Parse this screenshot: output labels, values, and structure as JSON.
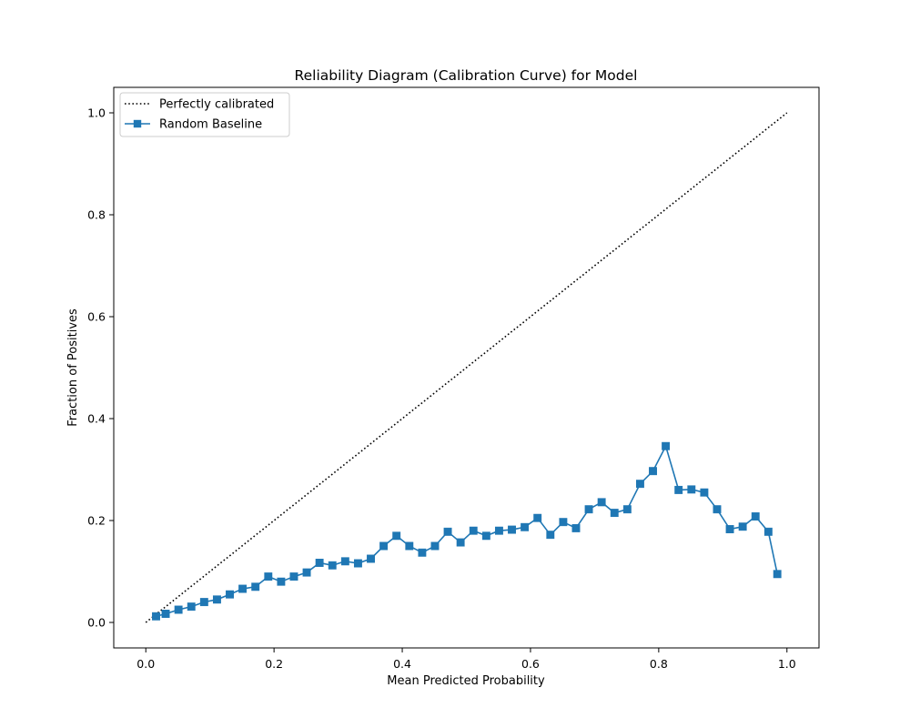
{
  "chart_data": {
    "type": "line",
    "title": "Reliability Diagram (Calibration Curve) for Model",
    "xlabel": "Mean Predicted Probability",
    "ylabel": "Fraction of Positives",
    "xlim": [
      -0.05,
      1.05
    ],
    "ylim": [
      -0.05,
      1.05
    ],
    "xticks": [
      0.0,
      0.2,
      0.4,
      0.6,
      0.8,
      1.0
    ],
    "yticks": [
      0.0,
      0.2,
      0.4,
      0.6,
      0.8,
      1.0
    ],
    "xtick_labels": [
      "0.0",
      "0.2",
      "0.4",
      "0.6",
      "0.8",
      "1.0"
    ],
    "ytick_labels": [
      "0.0",
      "0.2",
      "0.4",
      "0.6",
      "0.8",
      "1.0"
    ],
    "grid": false,
    "legend_position": "upper-left",
    "series": [
      {
        "name": "Perfectly calibrated",
        "style": "dotted",
        "marker": "none",
        "color": "#000000",
        "x": [
          0.0,
          1.0
        ],
        "y": [
          0.0,
          1.0
        ]
      },
      {
        "name": "Random Baseline",
        "style": "solid",
        "marker": "square",
        "color": "#1f77b4",
        "x": [
          0.016,
          0.031,
          0.051,
          0.071,
          0.091,
          0.111,
          0.131,
          0.151,
          0.171,
          0.191,
          0.211,
          0.231,
          0.251,
          0.271,
          0.291,
          0.311,
          0.331,
          0.351,
          0.371,
          0.391,
          0.411,
          0.431,
          0.451,
          0.471,
          0.491,
          0.511,
          0.531,
          0.551,
          0.571,
          0.591,
          0.611,
          0.631,
          0.651,
          0.671,
          0.691,
          0.711,
          0.731,
          0.751,
          0.771,
          0.791,
          0.811,
          0.831,
          0.851,
          0.871,
          0.891,
          0.911,
          0.931,
          0.951,
          0.971,
          0.985
        ],
        "y": [
          0.012,
          0.017,
          0.025,
          0.031,
          0.04,
          0.045,
          0.055,
          0.066,
          0.07,
          0.09,
          0.08,
          0.09,
          0.098,
          0.117,
          0.112,
          0.12,
          0.116,
          0.125,
          0.15,
          0.17,
          0.15,
          0.137,
          0.15,
          0.178,
          0.157,
          0.18,
          0.17,
          0.18,
          0.182,
          0.187,
          0.205,
          0.172,
          0.197,
          0.185,
          0.222,
          0.236,
          0.215,
          0.222,
          0.272,
          0.297,
          0.346,
          0.26,
          0.261,
          0.255,
          0.222,
          0.183,
          0.188,
          0.208,
          0.178,
          0.095
        ]
      }
    ]
  }
}
